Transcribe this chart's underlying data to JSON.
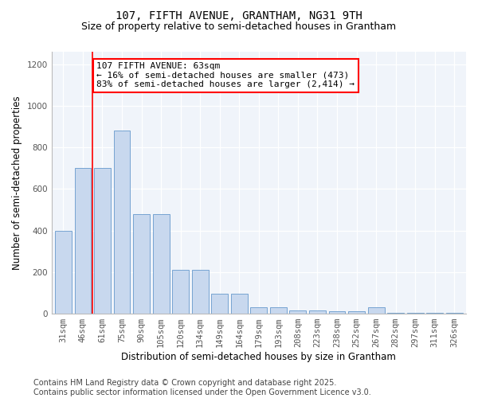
{
  "title1": "107, FIFTH AVENUE, GRANTHAM, NG31 9TH",
  "title2": "Size of property relative to semi-detached houses in Grantham",
  "xlabel": "Distribution of semi-detached houses by size in Grantham",
  "ylabel": "Number of semi-detached properties",
  "categories": [
    "31sqm",
    "46sqm",
    "61sqm",
    "75sqm",
    "90sqm",
    "105sqm",
    "120sqm",
    "134sqm",
    "149sqm",
    "164sqm",
    "179sqm",
    "193sqm",
    "208sqm",
    "223sqm",
    "238sqm",
    "252sqm",
    "267sqm",
    "282sqm",
    "297sqm",
    "311sqm",
    "326sqm"
  ],
  "values": [
    400,
    700,
    700,
    880,
    480,
    480,
    210,
    210,
    95,
    95,
    30,
    30,
    15,
    15,
    10,
    10,
    30,
    5,
    5,
    5,
    5
  ],
  "bar_color": "#c8d8ee",
  "bar_edge_color": "#6699cc",
  "vline_x_index": 2,
  "vline_color": "red",
  "annotation_text": "107 FIFTH AVENUE: 63sqm\n← 16% of semi-detached houses are smaller (473)\n83% of semi-detached houses are larger (2,414) →",
  "annotation_box_color": "white",
  "annotation_box_edge": "red",
  "ylim": [
    0,
    1260
  ],
  "yticks": [
    0,
    200,
    400,
    600,
    800,
    1000,
    1200
  ],
  "footer1": "Contains HM Land Registry data © Crown copyright and database right 2025.",
  "footer2": "Contains public sector information licensed under the Open Government Licence v3.0.",
  "bg_color": "#ffffff",
  "plot_bg_color": "#f0f4fa",
  "title1_fontsize": 10,
  "title2_fontsize": 9,
  "axis_label_fontsize": 8.5,
  "tick_fontsize": 7.5,
  "footer_fontsize": 7,
  "annotation_fontsize": 8
}
